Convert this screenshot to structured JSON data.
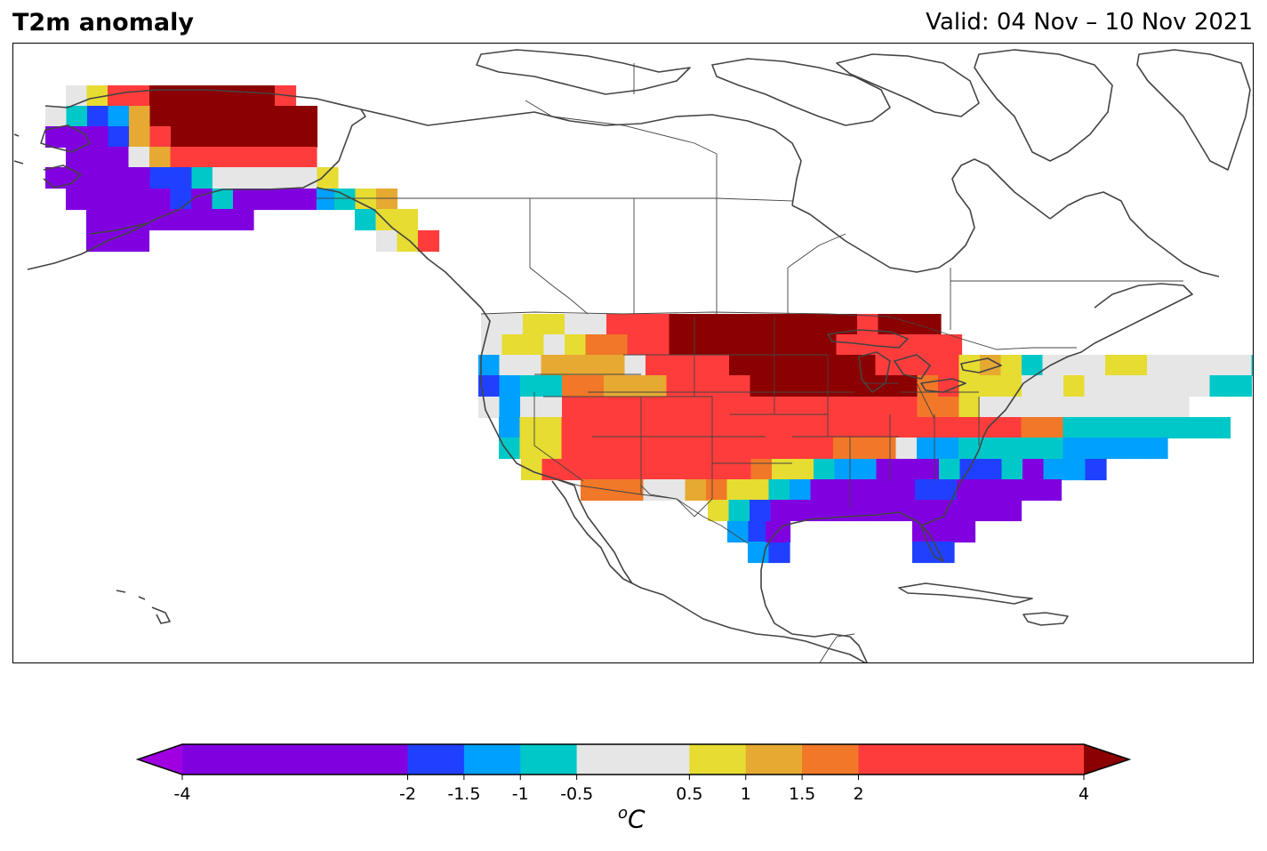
{
  "title": "T2m anomaly",
  "valid": "Valid: 04 Nov – 10 Nov 2021",
  "unit_base": "C",
  "unit_sup": "o",
  "colorbar": {
    "bounds": [
      -4,
      -2,
      -1.5,
      -1,
      -0.5,
      0.5,
      1,
      1.5,
      2,
      4
    ],
    "tick_labels": [
      "-4",
      "-2",
      "-1.5",
      "-1",
      "-0.5",
      "0.5",
      "1",
      "1.5",
      "2",
      "4"
    ],
    "colors": [
      "#8000e0",
      "#2040ff",
      "#00a0ff",
      "#00c8c8",
      "#e6e6e6",
      "#e6dc32",
      "#e6aa32",
      "#f07828",
      "#ff3c3c"
    ],
    "under_color": "#a000e0",
    "over_color": "#8b0000"
  },
  "map_colors": {
    "P": "#8000e0",
    "B": "#2040ff",
    "L": "#00a0ff",
    "C": "#00c8c8",
    "G": "#e6e6e6",
    "Y": "#e6dc32",
    "O": "#e6aa32",
    "N": "#f07828",
    "R": "#ff3c3c",
    "D": "#8b0000",
    "coast": "#444444"
  }
}
